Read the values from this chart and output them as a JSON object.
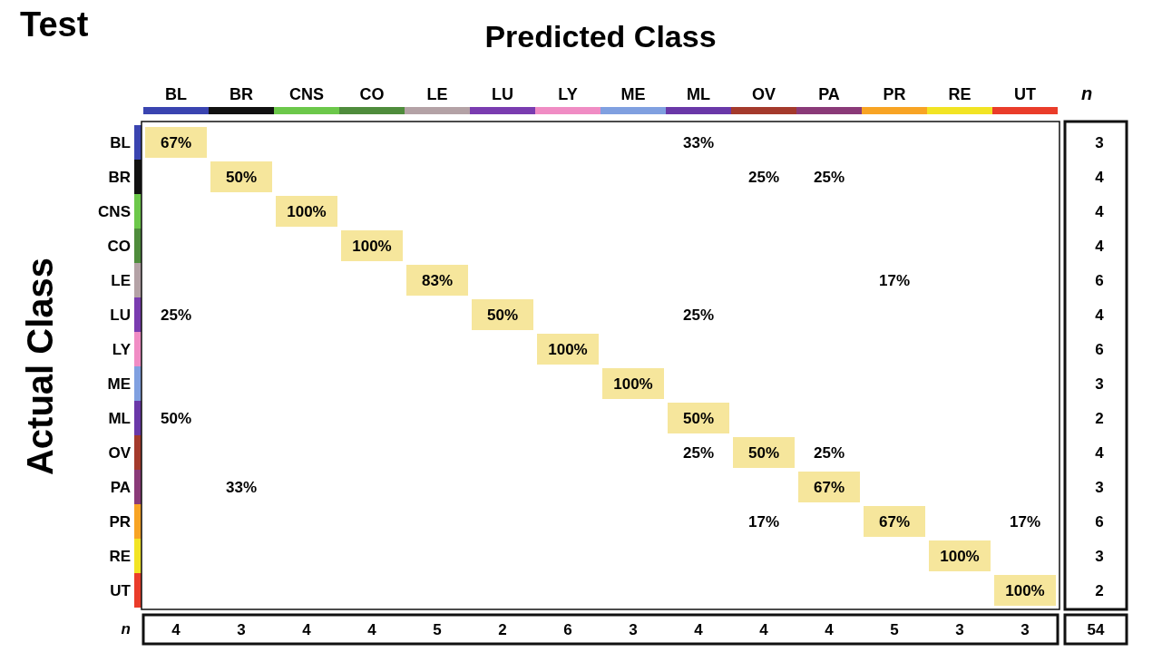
{
  "chart_data": {
    "type": "heatmap",
    "title": "Test",
    "xlabel": "Predicted Class",
    "ylabel": "Actual Class",
    "y2label": "n",
    "categories": [
      "BL",
      "BR",
      "CNS",
      "CO",
      "LE",
      "LU",
      "LY",
      "ME",
      "ML",
      "OV",
      "PA",
      "PR",
      "RE",
      "UT"
    ],
    "y_categories": [
      "BL",
      "BR",
      "CNS",
      "CO",
      "LE",
      "LU",
      "LY",
      "ME",
      "ML",
      "OV",
      "PA",
      "PR",
      "RE",
      "UT"
    ],
    "y2_categories": [
      "3",
      "4",
      "4",
      "4",
      "6",
      "4",
      "6",
      "3",
      "2",
      "4",
      "3",
      "6",
      "3",
      "2"
    ],
    "colors": [
      "#3a44b0",
      "#111111",
      "#6cc84a",
      "#4f8c3c",
      "#b4a2a6",
      "#7a3cb0",
      "#f08cc4",
      "#80a0e0",
      "#6a38a8",
      "#a43a2c",
      "#8a3a78",
      "#f8a424",
      "#f2e424",
      "#ea3c2a"
    ],
    "color": "#f6e69c",
    "cells": [
      [
        67,
        null,
        null,
        null,
        null,
        null,
        null,
        null,
        33,
        null,
        null,
        null,
        null,
        null
      ],
      [
        null,
        50,
        null,
        null,
        null,
        null,
        null,
        null,
        null,
        25,
        25,
        null,
        null,
        null
      ],
      [
        null,
        null,
        100,
        null,
        null,
        null,
        null,
        null,
        null,
        null,
        null,
        null,
        null,
        null
      ],
      [
        null,
        null,
        null,
        100,
        null,
        null,
        null,
        null,
        null,
        null,
        null,
        null,
        null,
        null
      ],
      [
        null,
        null,
        null,
        null,
        83,
        null,
        null,
        null,
        null,
        null,
        null,
        17,
        null,
        null
      ],
      [
        25,
        null,
        null,
        null,
        null,
        50,
        null,
        null,
        25,
        null,
        null,
        null,
        null,
        null
      ],
      [
        null,
        null,
        null,
        null,
        null,
        null,
        100,
        null,
        null,
        null,
        null,
        null,
        null,
        null
      ],
      [
        null,
        null,
        null,
        null,
        null,
        null,
        null,
        100,
        null,
        null,
        null,
        null,
        null,
        null
      ],
      [
        50,
        null,
        null,
        null,
        null,
        null,
        null,
        null,
        50,
        null,
        null,
        null,
        null,
        null
      ],
      [
        null,
        null,
        null,
        null,
        null,
        null,
        null,
        null,
        25,
        50,
        25,
        null,
        null,
        null
      ],
      [
        null,
        33,
        null,
        null,
        null,
        null,
        null,
        null,
        null,
        null,
        67,
        null,
        null,
        null
      ],
      [
        null,
        null,
        null,
        null,
        null,
        null,
        null,
        null,
        null,
        17,
        null,
        67,
        null,
        17
      ],
      [
        null,
        null,
        null,
        null,
        null,
        null,
        null,
        null,
        null,
        null,
        null,
        null,
        100,
        null
      ],
      [
        null,
        null,
        null,
        null,
        null,
        null,
        null,
        null,
        null,
        null,
        null,
        null,
        null,
        100
      ]
    ],
    "cell_labels": [
      [
        "67%",
        null,
        null,
        null,
        null,
        null,
        null,
        null,
        "33%",
        null,
        null,
        null,
        null,
        null
      ],
      [
        null,
        "50%",
        null,
        null,
        null,
        null,
        null,
        null,
        null,
        "25%",
        "25%",
        null,
        null,
        null
      ],
      [
        null,
        null,
        "100%",
        null,
        null,
        null,
        null,
        null,
        null,
        null,
        null,
        null,
        null,
        null
      ],
      [
        null,
        null,
        null,
        "100%",
        null,
        null,
        null,
        null,
        null,
        null,
        null,
        null,
        null,
        null
      ],
      [
        null,
        null,
        null,
        null,
        "83%",
        null,
        null,
        null,
        null,
        null,
        null,
        "17%",
        null,
        null
      ],
      [
        "25%",
        null,
        null,
        null,
        null,
        "50%",
        null,
        null,
        "25%",
        null,
        null,
        null,
        null,
        null
      ],
      [
        null,
        null,
        null,
        null,
        null,
        null,
        "100%",
        null,
        null,
        null,
        null,
        null,
        null,
        null
      ],
      [
        null,
        null,
        null,
        null,
        null,
        null,
        null,
        "100%",
        null,
        null,
        null,
        null,
        null,
        null
      ],
      [
        "50%",
        null,
        null,
        null,
        null,
        null,
        null,
        null,
        "50%",
        null,
        null,
        null,
        null,
        null
      ],
      [
        null,
        null,
        null,
        null,
        null,
        null,
        null,
        null,
        "25%",
        "50%",
        "25%",
        null,
        null,
        null
      ],
      [
        null,
        "33%",
        null,
        null,
        null,
        null,
        null,
        null,
        null,
        null,
        "67%",
        null,
        null,
        null
      ],
      [
        null,
        null,
        null,
        null,
        null,
        null,
        null,
        null,
        null,
        "17%",
        null,
        "67%",
        null,
        "17%"
      ],
      [
        null,
        null,
        null,
        null,
        null,
        null,
        null,
        null,
        null,
        null,
        null,
        null,
        "100%",
        null
      ],
      [
        null,
        null,
        null,
        null,
        null,
        null,
        null,
        null,
        null,
        null,
        null,
        null,
        null,
        "100%"
      ]
    ],
    "totals": [
      "4",
      "3",
      "4",
      "4",
      "5",
      "2",
      "6",
      "3",
      "4",
      "4",
      "4",
      "5",
      "3",
      "3",
      "54"
    ],
    "annotations": [
      "n"
    ]
  }
}
